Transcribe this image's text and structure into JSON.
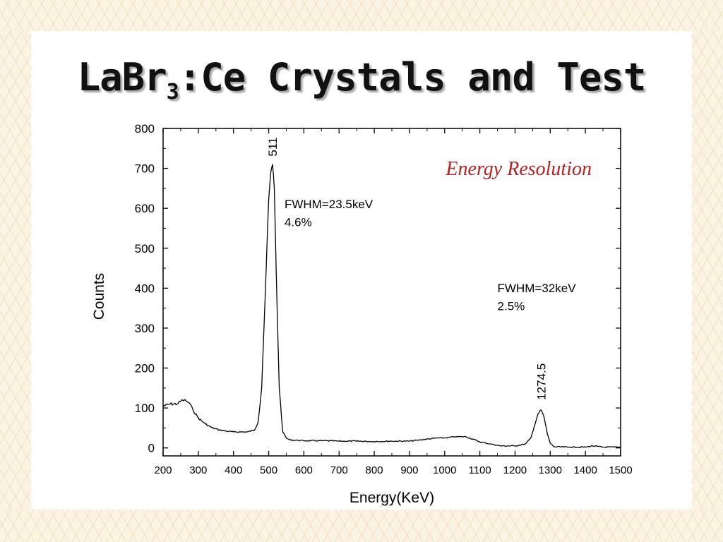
{
  "slide": {
    "title_main": "LaBr",
    "title_sub": "3",
    "title_rest": ":Ce Crystals and Test"
  },
  "chart_data": {
    "type": "line",
    "title": "Energy Resolution",
    "xlabel": "Energy(KeV)",
    "ylabel": "Counts",
    "xlim": [
      200,
      1500
    ],
    "ylim": [
      -20,
      800
    ],
    "xticks": [
      200,
      300,
      400,
      500,
      600,
      700,
      800,
      900,
      1000,
      1100,
      1200,
      1300,
      1400,
      1500
    ],
    "yticks": [
      0,
      100,
      200,
      300,
      400,
      500,
      600,
      700,
      800
    ],
    "grid": false,
    "series": [
      {
        "x": [
          200,
          220,
          240,
          255,
          265,
          275,
          285,
          300,
          320,
          340,
          360,
          380,
          400,
          420,
          440,
          460,
          470,
          480,
          490,
          500,
          506,
          511,
          516,
          522,
          530,
          540,
          550,
          560,
          600,
          650,
          700,
          750,
          800,
          850,
          900,
          950,
          980,
          1000,
          1030,
          1060,
          1080,
          1100,
          1130,
          1160,
          1200,
          1230,
          1245,
          1255,
          1265,
          1274.5,
          1283,
          1292,
          1300,
          1310,
          1350,
          1400,
          1420,
          1450,
          1500
        ],
        "y": [
          105,
          110,
          110,
          120,
          118,
          112,
          95,
          75,
          60,
          50,
          45,
          42,
          40,
          40,
          40,
          45,
          65,
          150,
          380,
          620,
          690,
          710,
          650,
          420,
          150,
          40,
          25,
          20,
          18,
          18,
          17,
          17,
          16,
          17,
          17,
          22,
          25,
          25,
          28,
          28,
          22,
          15,
          10,
          5,
          5,
          10,
          25,
          55,
          85,
          95,
          75,
          35,
          12,
          3,
          2,
          2,
          5,
          2,
          2
        ]
      }
    ],
    "annotations": [
      {
        "text": "511",
        "x": 511,
        "y": 730
      },
      {
        "text": "FWHM=23.5keV",
        "x": 545,
        "y": 600
      },
      {
        "text": "4.6%",
        "x": 545,
        "y": 555
      },
      {
        "text": "FWHM=32keV",
        "x": 1150,
        "y": 390
      },
      {
        "text": "2.5%",
        "x": 1150,
        "y": 345
      },
      {
        "text": "1274.5",
        "x": 1274.5,
        "y": 120
      }
    ],
    "colors": {
      "line": "#000000",
      "title": "#b22222"
    }
  }
}
